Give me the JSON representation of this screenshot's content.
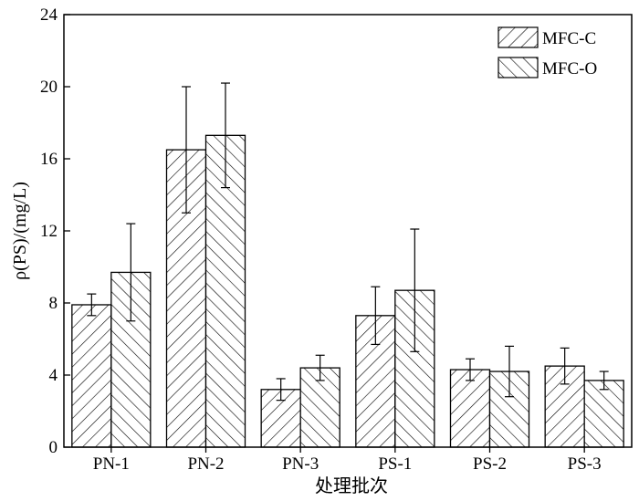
{
  "chart_data": {
    "type": "bar",
    "title": "",
    "xlabel": "处理批次",
    "ylabel": "ρ(PS)/(mg/L)",
    "ylim": [
      0,
      24
    ],
    "yticks": [
      0,
      4,
      8,
      12,
      16,
      20,
      24
    ],
    "categories": [
      "PN-1",
      "PN-2",
      "PN-3",
      "PS-1",
      "PS-2",
      "PS-3"
    ],
    "series": [
      {
        "name": "MFC-C",
        "pattern": "forward-hatch",
        "values": [
          7.9,
          16.5,
          3.2,
          7.3,
          4.3,
          4.5
        ],
        "errors": [
          0.6,
          3.5,
          0.6,
          1.6,
          0.6,
          1.0
        ]
      },
      {
        "name": "MFC-O",
        "pattern": "back-hatch",
        "values": [
          9.7,
          17.3,
          4.4,
          8.7,
          4.2,
          3.7
        ],
        "errors": [
          2.7,
          2.9,
          0.7,
          3.4,
          1.4,
          0.5
        ]
      }
    ],
    "legend_position": "top-right",
    "grid": false
  }
}
